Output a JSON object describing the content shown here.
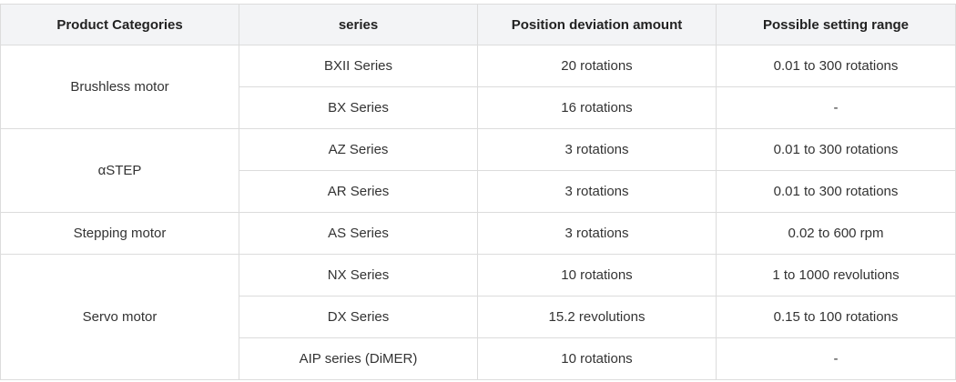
{
  "table": {
    "headers": [
      "Product Categories",
      "series",
      "Position deviation amount",
      "Possible setting range"
    ],
    "groups": [
      {
        "category": "Brushless motor",
        "rows": [
          [
            "BXII Series",
            "20 rotations",
            "0.01 to 300 rotations"
          ],
          [
            "BX Series",
            "16 rotations",
            "-"
          ]
        ]
      },
      {
        "category": "αSTEP",
        "rows": [
          [
            "AZ Series",
            "3 rotations",
            "0.01 to 300 rotations"
          ],
          [
            "AR Series",
            "3 rotations",
            "0.01 to 300 rotations"
          ]
        ]
      },
      {
        "category": "Stepping motor",
        "rows": [
          [
            "AS Series",
            "3 rotations",
            "0.02 to 600 rpm"
          ]
        ]
      },
      {
        "category": "Servo motor",
        "rows": [
          [
            "NX Series",
            "10 rotations",
            "1 to 1000 revolutions"
          ],
          [
            "DX Series",
            "15.2 revolutions",
            "0.15 to 100 rotations"
          ],
          [
            "AIP series (DiMER)",
            "10 rotations",
            "-"
          ]
        ]
      }
    ]
  }
}
